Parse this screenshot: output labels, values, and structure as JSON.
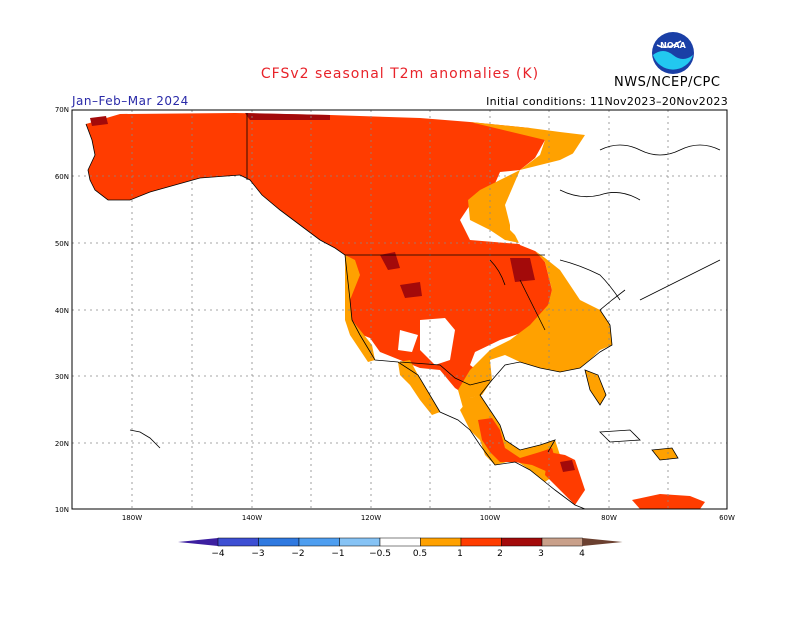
{
  "title": "CFSv2 seasonal T2m anomalies (K)",
  "season_label": "Jan–Feb–Mar 2024",
  "initial_conditions": "Initial conditions: 11Nov2023–20Nov2023",
  "org_label": "NWS/NCEP/CPC",
  "logo_text": "NOAA",
  "lat_labels": [
    "70N",
    "60N",
    "50N",
    "40N",
    "30N",
    "20N",
    "10N"
  ],
  "lon_labels": [
    "180W",
    "140W",
    "120W",
    "100W",
    "80W",
    "60W"
  ],
  "colorbar": {
    "labels": [
      "−4",
      "−3",
      "−2",
      "−1",
      "−0.5",
      "0.5",
      "1",
      "2",
      "3",
      "4"
    ],
    "colors": [
      "#3c1fa0",
      "#3d4fd3",
      "#2f79e0",
      "#4e9ef0",
      "#86c3f5",
      "#ffffff",
      "#ffa100",
      "#ff3c00",
      "#a30a0a",
      "#c9a08a",
      "#6b4030"
    ]
  }
}
